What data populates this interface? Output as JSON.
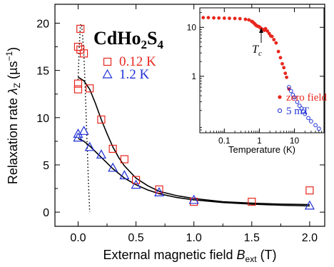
{
  "chart_data": [
    {
      "type": "scatter",
      "title": "CdHo2S4",
      "title_base": "CdHo",
      "title_sub1": "2",
      "title_mid": "S",
      "title_sub2": "4",
      "xlabel_prefix": "External magnetic field ",
      "xlabel_var": "B",
      "xlabel_sub": "ext",
      "xlabel_unit": " (T)",
      "ylabel_prefix": "Relaxation rate ",
      "ylabel_var": "λ",
      "ylabel_sub": "Z",
      "ylabel_unit": " (µs",
      "ylabel_exp": "−1",
      "ylabel_close": ")",
      "xlim": [
        -0.2,
        2.13
      ],
      "ylim": [
        -1.5,
        22
      ],
      "xticks": [
        0.0,
        0.5,
        1.0,
        1.5,
        2.0
      ],
      "xtick_labels": [
        "0.0",
        "0.5",
        "1.0",
        "1.5",
        "2.0"
      ],
      "yticks": [
        0,
        5,
        10,
        15,
        20
      ],
      "ytick_labels": [
        "0",
        "5",
        "10",
        "15",
        "20"
      ],
      "legend_position": "top-left",
      "series": [
        {
          "name": "0.12 K",
          "marker": "open-square",
          "color": "#e8261d",
          "x": [
            0.0,
            0.0,
            0.0,
            0.02,
            0.02,
            0.05,
            0.1,
            0.2,
            0.3,
            0.4,
            0.5,
            0.7,
            1.0,
            1.5,
            2.0
          ],
          "y": [
            13.0,
            13.6,
            17.5,
            19.4,
            17.2,
            16.8,
            13.1,
            9.8,
            6.7,
            5.6,
            3.4,
            2.4,
            1.1,
            1.1,
            2.3
          ]
        },
        {
          "name": "1.2 K",
          "marker": "open-triangle",
          "color": "#1f2fd6",
          "x": [
            0.0,
            0.0,
            0.05,
            0.1,
            0.2,
            0.3,
            0.4,
            0.5,
            0.7,
            1.0,
            2.0
          ],
          "y": [
            7.9,
            8.3,
            8.6,
            6.9,
            6.1,
            4.7,
            3.9,
            2.9,
            2.1,
            1.3,
            0.7
          ]
        }
      ],
      "fits": [
        {
          "style": "solid",
          "x": [
            0.0,
            0.05,
            0.1,
            0.15,
            0.2,
            0.25,
            0.3,
            0.35,
            0.4,
            0.5,
            0.6,
            0.7,
            0.85,
            1.0,
            1.25,
            1.5,
            1.75,
            2.0
          ],
          "y": [
            14.3,
            13.9,
            13.0,
            11.5,
            9.8,
            8.3,
            6.9,
            5.8,
            4.9,
            3.6,
            2.8,
            2.2,
            1.75,
            1.45,
            1.1,
            0.95,
            0.85,
            0.8
          ]
        },
        {
          "style": "solid",
          "x": [
            0.0,
            0.05,
            0.1,
            0.15,
            0.2,
            0.25,
            0.3,
            0.35,
            0.4,
            0.5,
            0.6,
            0.7,
            0.85,
            1.0,
            1.25,
            1.5,
            1.75,
            2.0
          ],
          "y": [
            7.8,
            7.5,
            7.0,
            6.4,
            5.8,
            5.2,
            4.6,
            4.1,
            3.6,
            2.9,
            2.35,
            1.95,
            1.55,
            1.3,
            1.02,
            0.85,
            0.73,
            0.65
          ]
        },
        {
          "style": "dotted",
          "x": [
            0.0,
            0.01,
            0.02,
            0.03,
            0.04,
            0.05,
            0.06,
            0.07,
            0.08,
            0.09,
            0.1
          ],
          "y": [
            14.0,
            17.5,
            19.8,
            19.9,
            18.5,
            16.5,
            13.5,
            10.0,
            6.5,
            3.0,
            0.0
          ]
        }
      ]
    },
    {
      "type": "scatter",
      "scale": "log-log",
      "xlabel": "Temperature (K)",
      "xlim": [
        0.02,
        70
      ],
      "ylim": [
        0.07,
        25
      ],
      "xticks": [
        0.1,
        1,
        10
      ],
      "xtick_labels": [
        "0.1",
        "1",
        "10"
      ],
      "yticks": [
        1,
        10
      ],
      "ytick_labels": [
        "1",
        "10"
      ],
      "annotation_var": "T",
      "annotation_sub": "c",
      "annotation_target": [
        0.85,
        10.2
      ],
      "legend_position": "bottom-right",
      "series": [
        {
          "name": "zero field",
          "marker": "filled-circle",
          "color": "#e8261d",
          "x": [
            0.025,
            0.035,
            0.05,
            0.07,
            0.1,
            0.14,
            0.2,
            0.28,
            0.4,
            0.5,
            0.6,
            0.65,
            0.7,
            0.75,
            0.8,
            0.85,
            0.9,
            0.95,
            1.0,
            1.1,
            1.2,
            1.3,
            1.4,
            1.5,
            1.7,
            1.9,
            2.1,
            2.3,
            2.6,
            3.0,
            3.5,
            4.0,
            4.5,
            5.0,
            5.5,
            6.0,
            7.0
          ],
          "y": [
            15.8,
            15.8,
            15.6,
            15.5,
            15.4,
            15.3,
            15.2,
            15.0,
            14.6,
            14.2,
            13.3,
            12.8,
            12.2,
            11.6,
            11.0,
            10.7,
            10.5,
            10.4,
            10.2,
            9.6,
            9.2,
            8.9,
            8.7,
            9.4,
            8.4,
            7.5,
            6.7,
            6.5,
            5.6,
            4.8,
            3.2,
            2.4,
            1.8,
            1.5,
            1.15,
            0.95,
            0.55
          ]
        },
        {
          "name": "5 mT",
          "marker": "open-circle",
          "color": "#1f2fd6",
          "x": [
            7,
            8,
            9,
            10,
            12,
            14,
            16,
            18,
            20,
            25,
            30,
            40,
            50
          ],
          "y": [
            0.6,
            0.5,
            0.42,
            0.37,
            0.3,
            0.25,
            0.22,
            0.19,
            0.17,
            0.14,
            0.12,
            0.1,
            0.085
          ]
        }
      ]
    }
  ]
}
